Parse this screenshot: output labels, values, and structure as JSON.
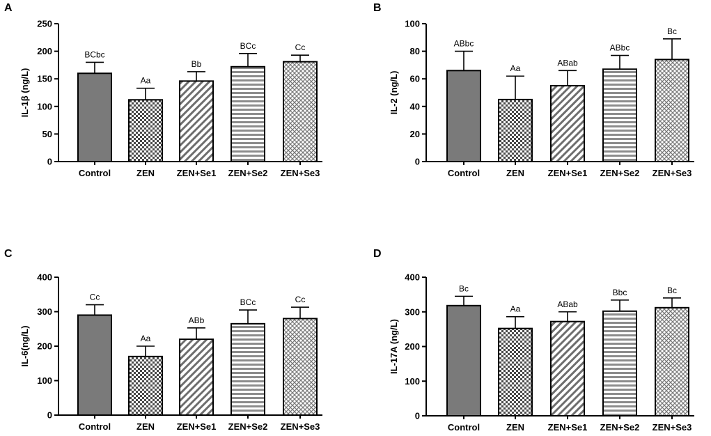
{
  "figure": {
    "categories": [
      "Control",
      "ZEN",
      "ZEN+Se1",
      "ZEN+Se2",
      "ZEN+Se3"
    ],
    "bar_styles": [
      "solid-gray",
      "checker",
      "diagonal-stripes",
      "horizontal-stripes",
      "crosshatch-dots"
    ],
    "colors": {
      "bar_fill": "#7a7a7a",
      "axis": "#000000",
      "background": "#ffffff"
    }
  },
  "chart_data": [
    {
      "type": "bar",
      "panel": "A",
      "ylabel": "IL-1β (ng/L)",
      "ylim": [
        0,
        250
      ],
      "yticks": [
        0,
        50,
        100,
        150,
        200,
        250
      ],
      "categories": [
        "Control",
        "ZEN",
        "ZEN+Se1",
        "ZEN+Se2",
        "ZEN+Se3"
      ],
      "values": [
        160,
        112,
        146,
        172,
        181
      ],
      "errors": [
        20,
        21,
        17,
        24,
        12
      ],
      "labels": [
        "BCbc",
        "Aa",
        "Bb",
        "BCc",
        "Cc"
      ]
    },
    {
      "type": "bar",
      "panel": "B",
      "ylabel": "IL-2 (ng/L)",
      "ylim": [
        0,
        100
      ],
      "yticks": [
        0,
        20,
        40,
        60,
        80,
        100
      ],
      "categories": [
        "Control",
        "ZEN",
        "ZEN+Se1",
        "ZEN+Se2",
        "ZEN+Se3"
      ],
      "values": [
        66,
        45,
        55,
        67,
        74
      ],
      "errors": [
        14,
        17,
        11,
        10,
        15
      ],
      "labels": [
        "ABbc",
        "Aa",
        "ABab",
        "ABbc",
        "Bc"
      ]
    },
    {
      "type": "bar",
      "panel": "C",
      "ylabel": "IL-6(ng/L)",
      "ylim": [
        0,
        400
      ],
      "yticks": [
        0,
        100,
        200,
        300,
        400
      ],
      "categories": [
        "Control",
        "ZEN",
        "ZEN+Se1",
        "ZEN+Se2",
        "ZEN+Se3"
      ],
      "values": [
        290,
        170,
        220,
        265,
        280
      ],
      "errors": [
        30,
        30,
        33,
        40,
        33
      ],
      "labels": [
        "Cc",
        "Aa",
        "ABb",
        "BCc",
        "Cc"
      ]
    },
    {
      "type": "bar",
      "panel": "D",
      "ylabel": "IL-17A (ng/L)",
      "ylim": [
        0,
        400
      ],
      "yticks": [
        0,
        100,
        200,
        300,
        400
      ],
      "categories": [
        "Control",
        "ZEN",
        "ZEN+Se1",
        "ZEN+Se2",
        "ZEN+Se3"
      ],
      "values": [
        318,
        252,
        272,
        302,
        312
      ],
      "errors": [
        27,
        34,
        28,
        32,
        28
      ],
      "labels": [
        "Bc",
        "Aa",
        "ABab",
        "Bbc",
        "Bc"
      ]
    }
  ]
}
